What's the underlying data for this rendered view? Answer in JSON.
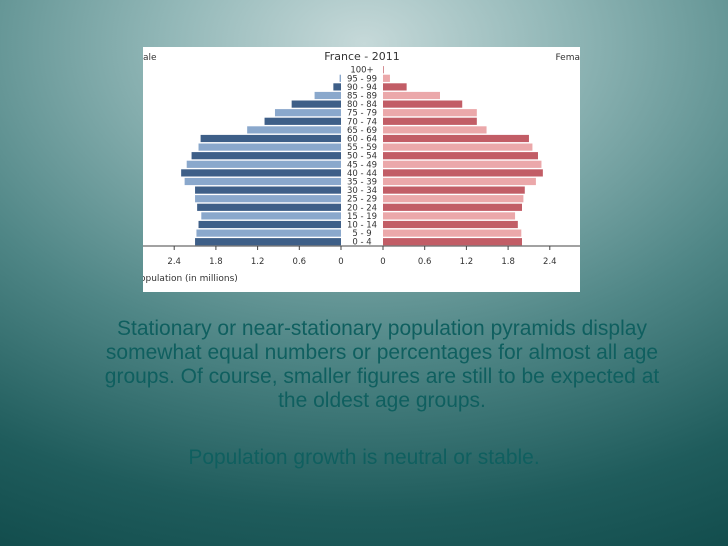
{
  "slide": {
    "paragraph_lines": [
      "Stationary or near-stationary population pyramids display",
      "somewhat equal numbers or percentages for almost all age",
      "groups. Of course, smaller figures are still to be expected at",
      "the oldest age groups."
    ],
    "subtext": "Population growth is neutral or stable."
  },
  "chart_data": {
    "type": "bar",
    "orientation": "horizontal-pyramid",
    "title": "France - 2011",
    "left_label": "ale",
    "right_label": "Fema",
    "xlabel": "opulation (in millions)",
    "xticks_left": [
      "2.4",
      "1.8",
      "1.2",
      "0.6",
      "0"
    ],
    "xticks_right": [
      "0",
      "0.6",
      "1.2",
      "1.8",
      "2.4"
    ],
    "xlim": [
      0,
      2.9
    ],
    "categories": [
      "0 - 4",
      "5 - 9",
      "10 - 14",
      "15 - 19",
      "20 - 24",
      "25 - 29",
      "30 - 34",
      "35 - 39",
      "40 - 44",
      "45 - 49",
      "50 - 54",
      "55 - 59",
      "60 - 64",
      "65 - 69",
      "70 - 74",
      "75 - 79",
      "80 - 84",
      "85 - 89",
      "90 - 94",
      "95 - 99",
      "100+"
    ],
    "series": [
      {
        "name": "ale",
        "values": [
          2.1,
          2.08,
          2.05,
          2.01,
          2.07,
          2.1,
          2.1,
          2.25,
          2.3,
          2.22,
          2.15,
          2.05,
          2.02,
          1.35,
          1.1,
          0.95,
          0.71,
          0.38,
          0.11,
          0.02,
          0.0
        ]
      },
      {
        "name": "Fema",
        "values": [
          2.0,
          1.99,
          1.94,
          1.9,
          2.0,
          2.02,
          2.04,
          2.2,
          2.3,
          2.28,
          2.23,
          2.15,
          2.1,
          1.49,
          1.35,
          1.35,
          1.14,
          0.82,
          0.34,
          0.1,
          0.01
        ]
      }
    ],
    "colors": {
      "male_dark": "#3e5f88",
      "male_light": "#8aa8cc",
      "female_dark": "#c25d66",
      "female_light": "#eba8aa"
    }
  }
}
